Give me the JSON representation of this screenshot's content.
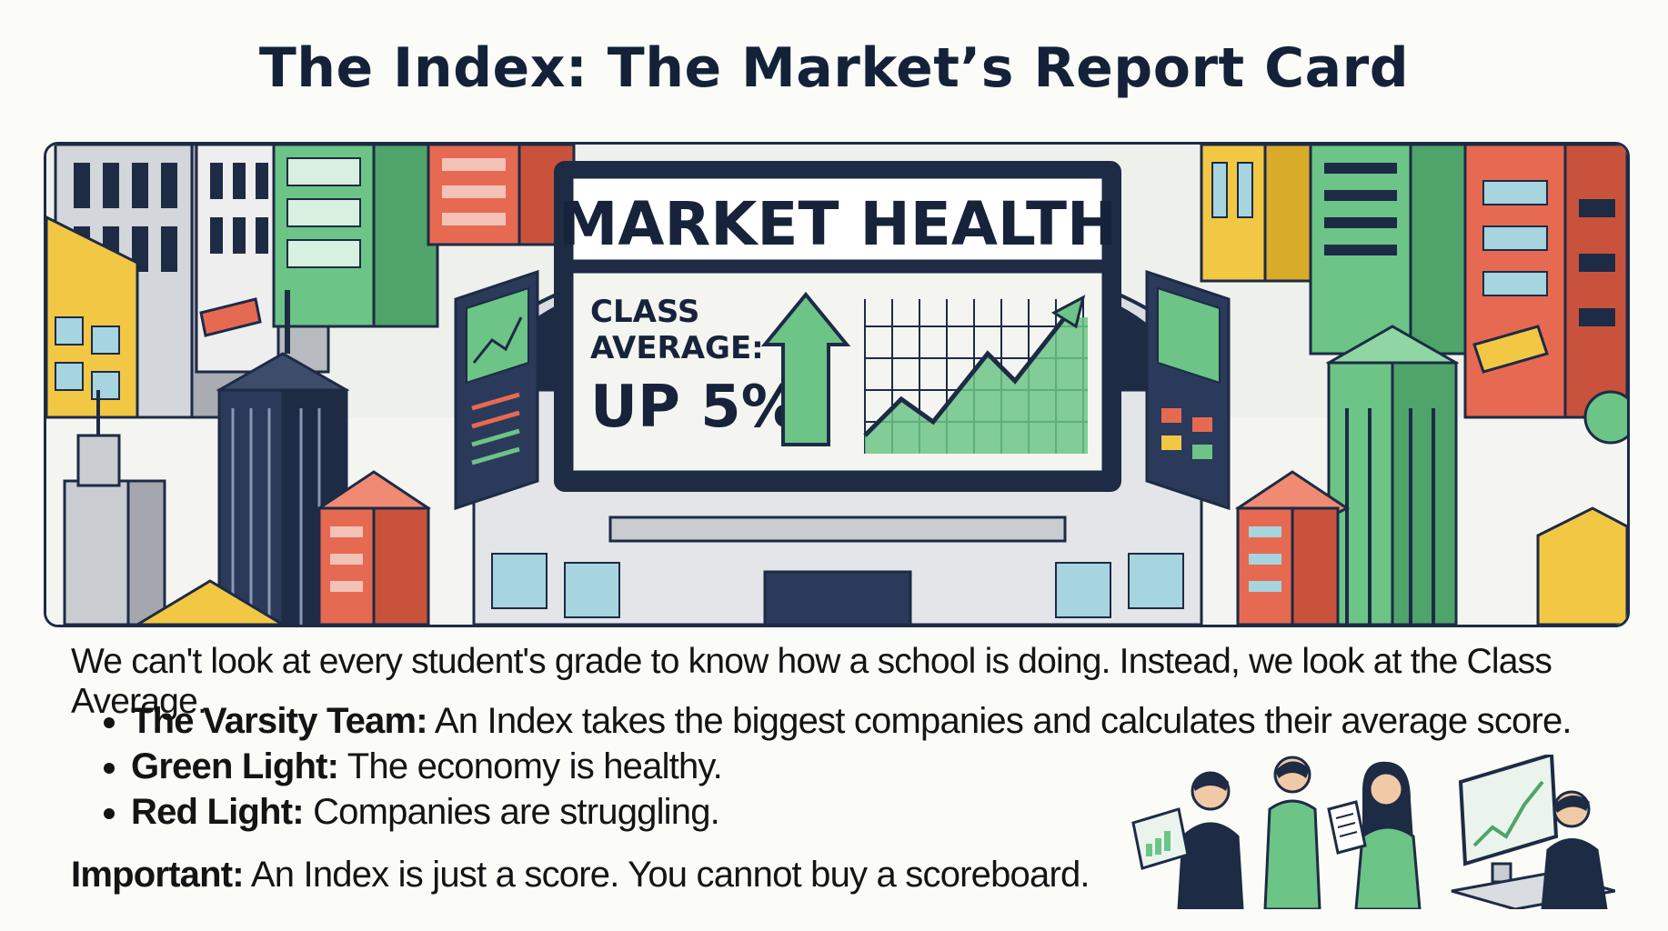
{
  "title": "The Index: The Market’s Report Card",
  "board": {
    "heading": "MARKET HEALTH",
    "label_line1": "CLASS",
    "label_line2": "AVERAGE:",
    "value": "UP 5%"
  },
  "intro": "We can't look at every student's grade to know how a school is doing. Instead, we look at the Class Average.",
  "points": [
    {
      "term": "The Varsity Team:",
      "text": " An Index takes the biggest companies and calculates their average score."
    },
    {
      "term": "Green Light:",
      "text": " The economy is healthy."
    },
    {
      "term": "Red Light:",
      "text": " Companies are struggling."
    }
  ],
  "important": {
    "term": "Important:",
    "text": " An Index is just a score. You cannot buy a scoreboard."
  },
  "colors": {
    "navy": "#1d2b45",
    "green": "#6cc487",
    "red": "#e66a52",
    "yellow": "#f2c744",
    "gray": "#c9ccd0"
  },
  "icons": [
    "up-arrow-icon",
    "line-chart-icon",
    "tablet-icon",
    "document-icon",
    "monitor-icon"
  ]
}
